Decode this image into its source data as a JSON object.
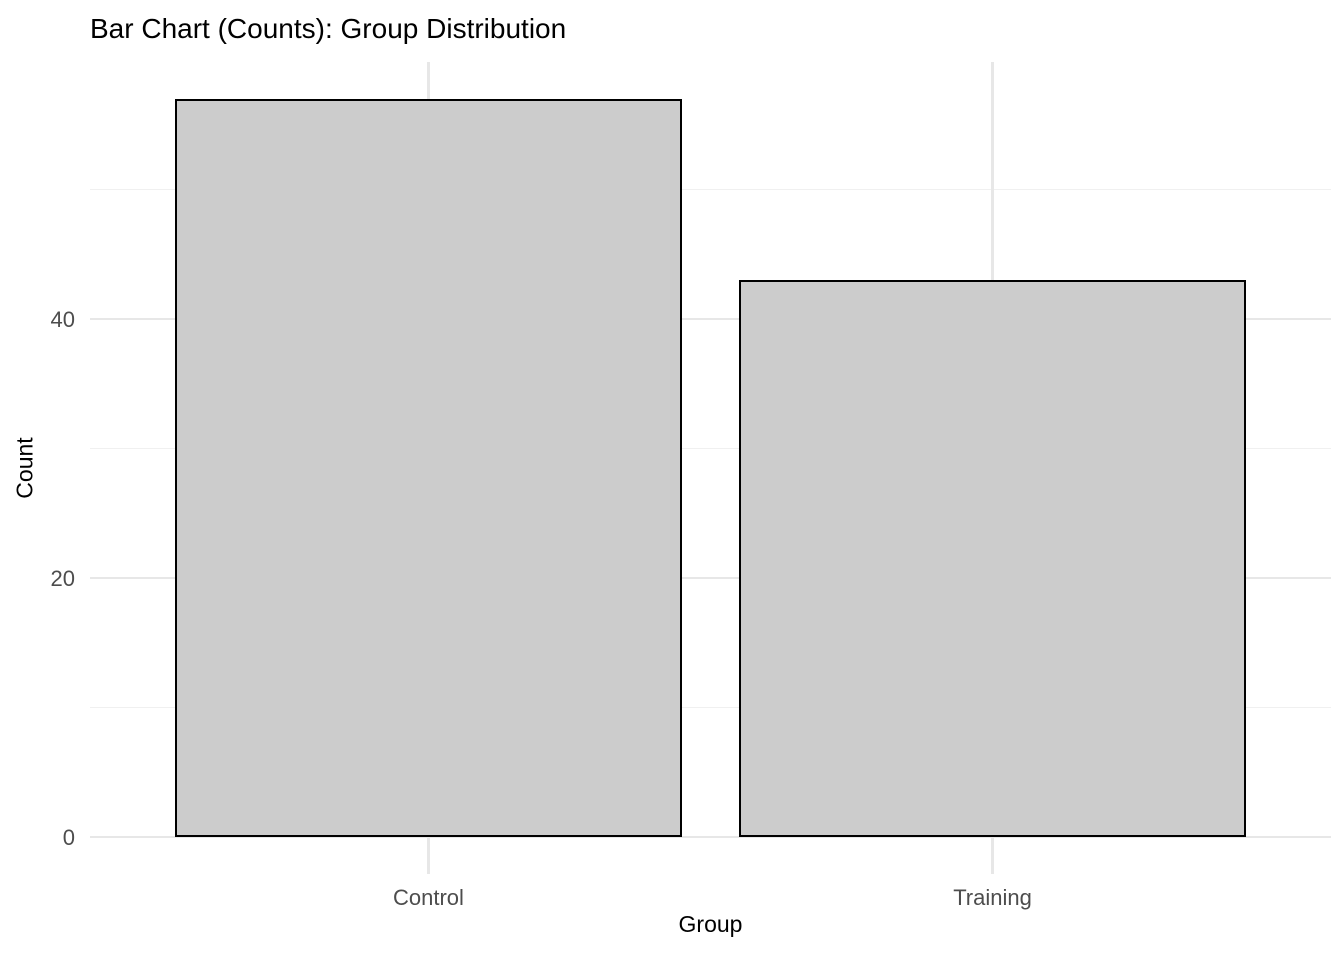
{
  "chart_data": {
    "type": "bar",
    "title": "Bar Chart (Counts): Group Distribution",
    "xlabel": "Group",
    "ylabel": "Count",
    "categories": [
      "Control",
      "Training"
    ],
    "values": [
      57,
      43
    ],
    "y_ticks": [
      0,
      20,
      40
    ],
    "y_minor_ticks": [
      10,
      30,
      50
    ],
    "ylim": [
      0,
      60
    ],
    "legend_position": "none",
    "grid": "on",
    "colors": {
      "bar_fill": "#CCCCCC",
      "bar_outline": "#000000",
      "grid_major": "#E7E7E7",
      "grid_minor": "#F0F0F0",
      "tick_label": "#4D4D4D",
      "text": "#000000",
      "background": "#FFFFFF"
    }
  }
}
